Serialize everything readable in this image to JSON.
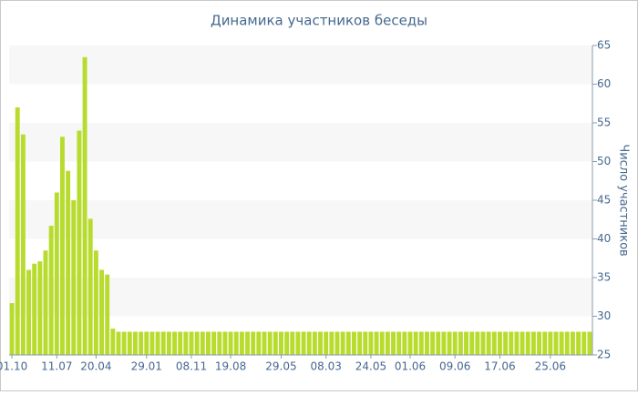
{
  "chart_data": {
    "type": "bar",
    "title": "Динамика участников беседы",
    "y_label": "Число участников",
    "categories": [
      "01.10",
      null,
      null,
      null,
      null,
      null,
      null,
      null,
      "11.07",
      null,
      null,
      null,
      null,
      null,
      null,
      "20.04",
      null,
      null,
      null,
      null,
      null,
      null,
      null,
      null,
      "29.01",
      null,
      null,
      null,
      null,
      null,
      null,
      null,
      "08.11",
      null,
      null,
      null,
      null,
      null,
      null,
      "19.08",
      null,
      null,
      null,
      null,
      null,
      null,
      null,
      null,
      "29.05",
      null,
      null,
      null,
      null,
      null,
      null,
      null,
      "08.03",
      null,
      null,
      null,
      null,
      null,
      null,
      null,
      "24.05",
      null,
      null,
      null,
      null,
      null,
      null,
      "01.06",
      null,
      null,
      null,
      null,
      null,
      null,
      null,
      "09.06",
      null,
      null,
      null,
      null,
      null,
      null,
      null,
      "17.06",
      null,
      null,
      null,
      null,
      null,
      null,
      null,
      null,
      "25.06",
      null,
      null,
      null,
      null,
      null,
      null,
      null
    ],
    "values": [
      31.7,
      57,
      53.5,
      36,
      36.8,
      37.1,
      38.5,
      41.7,
      46,
      53.2,
      48.8,
      45,
      54,
      63.5,
      42.6,
      38.5,
      36,
      35.4,
      28.4,
      28,
      28,
      28,
      28,
      28,
      28,
      28,
      28,
      28,
      28,
      28,
      28,
      28,
      28,
      28,
      28,
      28,
      28,
      28,
      28,
      28,
      28,
      28,
      28,
      28,
      28,
      28,
      28,
      28,
      28,
      28,
      28,
      28,
      28,
      28,
      28,
      28,
      28,
      28,
      28,
      28,
      28,
      28,
      28,
      28,
      28,
      28,
      28,
      28,
      28,
      28,
      28,
      28,
      28,
      28,
      28,
      28,
      28,
      28,
      28,
      28,
      28,
      28,
      28,
      28,
      28,
      28,
      28,
      28,
      28,
      28,
      28,
      28,
      28,
      28,
      28,
      28,
      28,
      28,
      28,
      28,
      28,
      28,
      28,
      28
    ],
    "color": "#b8dc2e",
    "ylim": [
      25,
      65
    ],
    "yticks": [
      25,
      30,
      35,
      40,
      45,
      50,
      55,
      60,
      65
    ],
    "y_axis_side": "right",
    "grid": "bands"
  }
}
